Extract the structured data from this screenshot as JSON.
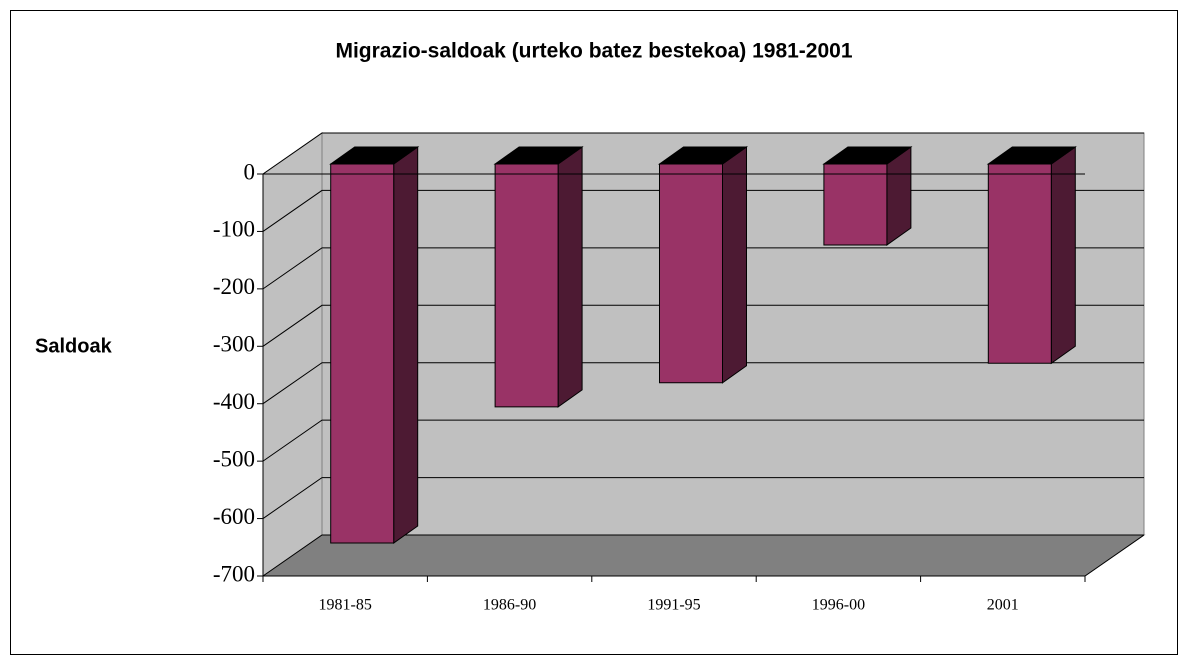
{
  "chart_data": {
    "type": "bar3d",
    "title": "Migrazio-saldoak (urteko batez bestekoa) 1981-2001",
    "y_label": "Saldoak",
    "categories": [
      "1981-85",
      "1986-90",
      "1991-95",
      "1996-00",
      "2001"
    ],
    "values": [
      -660,
      -423,
      -381,
      -141,
      -347
    ],
    "color": "#993366",
    "ylim": [
      -700,
      0
    ],
    "yticks": [
      -700,
      -600,
      -500,
      -400,
      -300,
      -200,
      -100,
      0
    ],
    "grid": true
  }
}
